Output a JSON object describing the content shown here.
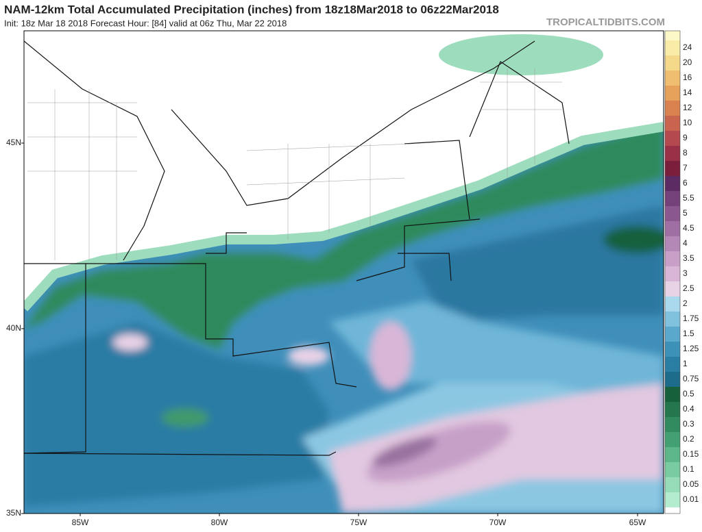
{
  "header": {
    "title": "NAM-12km Total Accumulated Precipitation (inches) from 18z18Mar2018 to 06z22Mar2018",
    "subtitle": "Init: 18z Mar 18 2018   Forecast Hour: [84]   valid at 06z Thu, Mar 22 2018",
    "site": "TROPICALTIDBITS.COM"
  },
  "axes": {
    "lat_labels": [
      "45N",
      "40N",
      "35N"
    ],
    "lon_labels": [
      "85W",
      "80W",
      "75W",
      "70W",
      "65W"
    ]
  },
  "colorbar": {
    "below_color": "#ffffff",
    "above_color": "#fdf8c8",
    "levels": [
      {
        "label": "0.01",
        "color": "#b4ecd0"
      },
      {
        "label": "0.05",
        "color": "#96dcb9"
      },
      {
        "label": "0.1",
        "color": "#78cca0"
      },
      {
        "label": "0.15",
        "color": "#5cb688"
      },
      {
        "label": "0.2",
        "color": "#43a072"
      },
      {
        "label": "0.3",
        "color": "#328b5e"
      },
      {
        "label": "0.4",
        "color": "#24774c"
      },
      {
        "label": "0.5",
        "color": "#17603c"
      },
      {
        "label": "0.75",
        "color": "#1e6c8c"
      },
      {
        "label": "1",
        "color": "#2a7da3"
      },
      {
        "label": "1.25",
        "color": "#3c91b8"
      },
      {
        "label": "1.5",
        "color": "#5aa8cb"
      },
      {
        "label": "1.75",
        "color": "#80c1de"
      },
      {
        "label": "2",
        "color": "#aad9ee"
      },
      {
        "label": "2.5",
        "color": "#e8d2e6"
      },
      {
        "label": "3",
        "color": "#d9b6d7"
      },
      {
        "label": "3.5",
        "color": "#c8a0c7"
      },
      {
        "label": "4",
        "color": "#b488b6"
      },
      {
        "label": "4.5",
        "color": "#9f6fa3"
      },
      {
        "label": "5",
        "color": "#8a578f"
      },
      {
        "label": "5.5",
        "color": "#74417b"
      },
      {
        "label": "6",
        "color": "#5c2b63"
      },
      {
        "label": "7",
        "color": "#7a1e3b"
      },
      {
        "label": "8",
        "color": "#9a3048"
      },
      {
        "label": "9",
        "color": "#b44a4f"
      },
      {
        "label": "10",
        "color": "#c9644f"
      },
      {
        "label": "12",
        "color": "#d9814f"
      },
      {
        "label": "14",
        "color": "#e6a15a"
      },
      {
        "label": "16",
        "color": "#efbf6f"
      },
      {
        "label": "20",
        "color": "#f5d98a"
      },
      {
        "label": "24",
        "color": "#f9eca8"
      }
    ]
  }
}
